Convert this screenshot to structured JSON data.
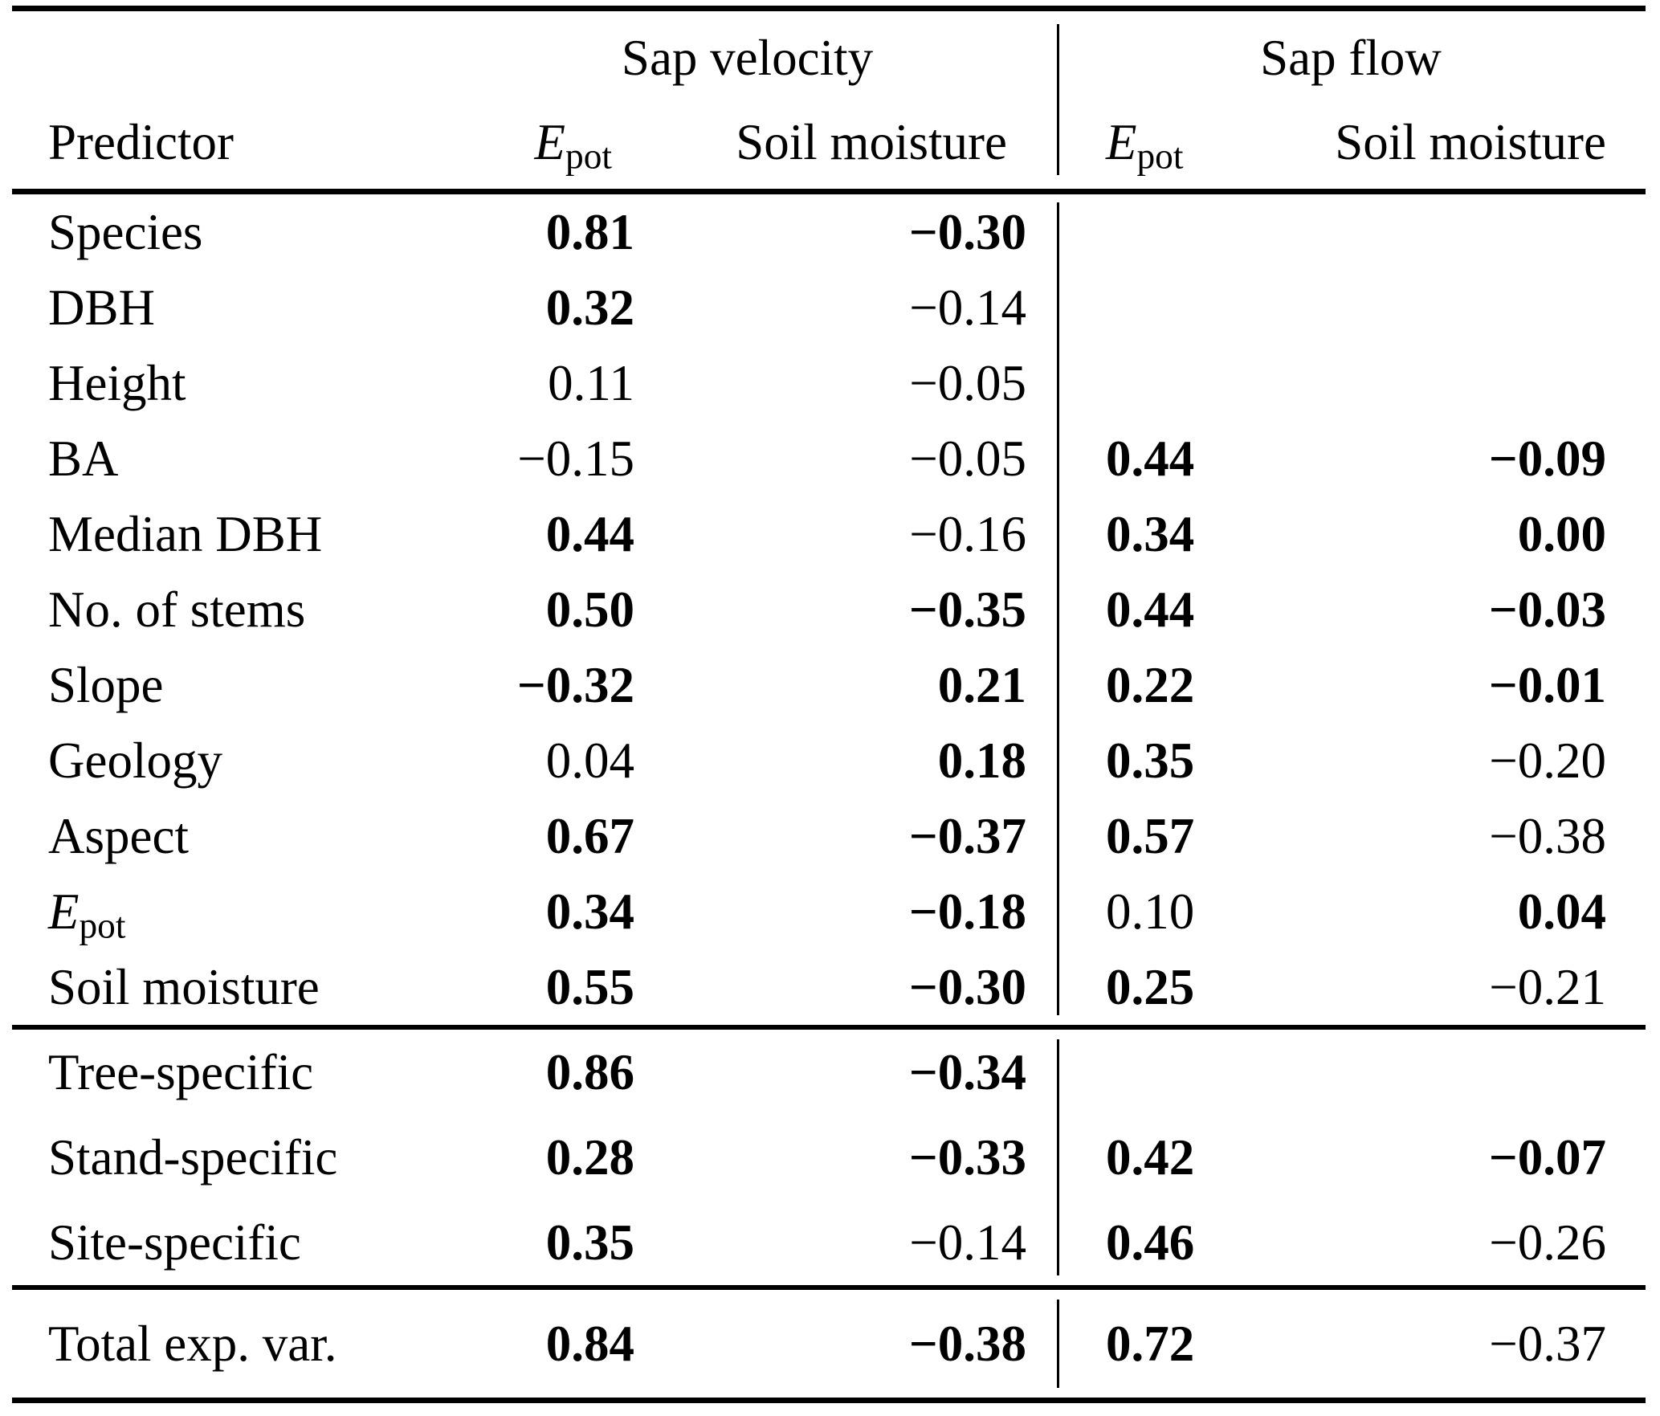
{
  "page": {
    "background": "#ffffff",
    "text_color": "#000000"
  },
  "table": {
    "group_headers": {
      "sap_velocity": "Sap velocity",
      "sap_flow": "Sap flow"
    },
    "column_headers": {
      "predictor": "Predictor",
      "epot_main": "E",
      "epot_sub": "pot",
      "soil_moisture_sv": "Soil moisture",
      "soil_moisture_sf": "Soil moisture"
    },
    "sections": [
      {
        "name": "predictors",
        "rows": [
          {
            "predictor": "Species",
            "is_epot": false,
            "values": [
              {
                "v": "0.81",
                "bold": true
              },
              {
                "v": "−0.30",
                "bold": true
              },
              null,
              null
            ]
          },
          {
            "predictor": "DBH",
            "is_epot": false,
            "values": [
              {
                "v": "0.32",
                "bold": true
              },
              {
                "v": "−0.14",
                "bold": false
              },
              null,
              null
            ]
          },
          {
            "predictor": "Height",
            "is_epot": false,
            "values": [
              {
                "v": "0.11",
                "bold": false
              },
              {
                "v": "−0.05",
                "bold": false
              },
              null,
              null
            ]
          },
          {
            "predictor": "BA",
            "is_epot": false,
            "values": [
              {
                "v": "−0.15",
                "bold": false
              },
              {
                "v": "−0.05",
                "bold": false
              },
              {
                "v": "0.44",
                "bold": true
              },
              {
                "v": "−0.09",
                "bold": true
              }
            ]
          },
          {
            "predictor": "Median DBH",
            "is_epot": false,
            "values": [
              {
                "v": "0.44",
                "bold": true
              },
              {
                "v": "−0.16",
                "bold": false
              },
              {
                "v": "0.34",
                "bold": true
              },
              {
                "v": "0.00",
                "bold": true
              }
            ]
          },
          {
            "predictor": "No. of stems",
            "is_epot": false,
            "values": [
              {
                "v": "0.50",
                "bold": true
              },
              {
                "v": "−0.35",
                "bold": true
              },
              {
                "v": "0.44",
                "bold": true
              },
              {
                "v": "−0.03",
                "bold": true
              }
            ]
          },
          {
            "predictor": "Slope",
            "is_epot": false,
            "values": [
              {
                "v": "−0.32",
                "bold": true
              },
              {
                "v": "0.21",
                "bold": true
              },
              {
                "v": "0.22",
                "bold": true
              },
              {
                "v": "−0.01",
                "bold": true
              }
            ]
          },
          {
            "predictor": "Geology",
            "is_epot": false,
            "values": [
              {
                "v": "0.04",
                "bold": false
              },
              {
                "v": "0.18",
                "bold": true
              },
              {
                "v": "0.35",
                "bold": true
              },
              {
                "v": "−0.20",
                "bold": false
              }
            ]
          },
          {
            "predictor": "Aspect",
            "is_epot": false,
            "values": [
              {
                "v": "0.67",
                "bold": true
              },
              {
                "v": "−0.37",
                "bold": true
              },
              {
                "v": "0.57",
                "bold": true
              },
              {
                "v": "−0.38",
                "bold": false
              }
            ]
          },
          {
            "predictor": "Epot",
            "is_epot": true,
            "values": [
              {
                "v": "0.34",
                "bold": true
              },
              {
                "v": "−0.18",
                "bold": true
              },
              {
                "v": "0.10",
                "bold": false
              },
              {
                "v": "0.04",
                "bold": true
              }
            ]
          },
          {
            "predictor": "Soil moisture",
            "is_epot": false,
            "values": [
              {
                "v": "0.55",
                "bold": true
              },
              {
                "v": "−0.30",
                "bold": true
              },
              {
                "v": "0.25",
                "bold": true
              },
              {
                "v": "−0.21",
                "bold": false
              }
            ]
          }
        ]
      },
      {
        "name": "variable-groups",
        "rows": [
          {
            "predictor": "Tree-specific",
            "is_epot": false,
            "values": [
              {
                "v": "0.86",
                "bold": true
              },
              {
                "v": "−0.34",
                "bold": true
              },
              null,
              null
            ]
          },
          {
            "predictor": "Stand-specific",
            "is_epot": false,
            "values": [
              {
                "v": "0.28",
                "bold": true
              },
              {
                "v": "−0.33",
                "bold": true
              },
              {
                "v": "0.42",
                "bold": true
              },
              {
                "v": "−0.07",
                "bold": true
              }
            ]
          },
          {
            "predictor": "Site-specific",
            "is_epot": false,
            "values": [
              {
                "v": "0.35",
                "bold": true
              },
              {
                "v": "−0.14",
                "bold": false
              },
              {
                "v": "0.46",
                "bold": true
              },
              {
                "v": "−0.26",
                "bold": false
              }
            ]
          }
        ]
      },
      {
        "name": "total",
        "rows": [
          {
            "predictor": "Total exp. var.",
            "is_epot": false,
            "values": [
              {
                "v": "0.84",
                "bold": true
              },
              {
                "v": "−0.38",
                "bold": true
              },
              {
                "v": "0.72",
                "bold": true
              },
              {
                "v": "−0.37",
                "bold": false
              }
            ]
          }
        ]
      }
    ]
  }
}
